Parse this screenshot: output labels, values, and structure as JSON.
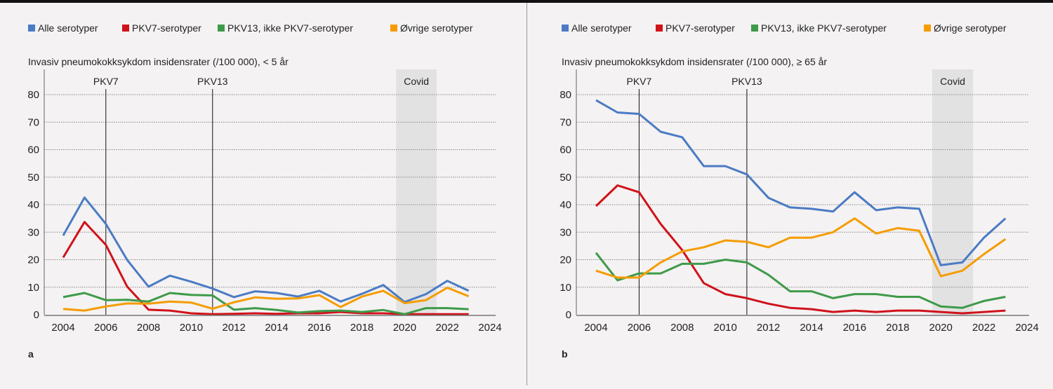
{
  "legend": [
    {
      "name": "Alle serotyper",
      "color": "#4a7bc4"
    },
    {
      "name": "PKV7-serotyper",
      "color": "#d0121b"
    },
    {
      "name": "PKV13, ikke PKV7-serotyper",
      "color": "#3e9a4a"
    },
    {
      "name": "Øvrige serotyper",
      "color": "#f59c00"
    }
  ],
  "chart_data": [
    {
      "type": "line",
      "panel_label": "a",
      "title": "Invasiv pneumokokksykdom insidensrater (/100 000), < 5 år",
      "xlim": [
        2004,
        2024
      ],
      "ylim": [
        0,
        80
      ],
      "xticks": [
        2004,
        2006,
        2008,
        2010,
        2012,
        2014,
        2016,
        2018,
        2020,
        2022,
        2024
      ],
      "yticks": [
        0,
        10,
        20,
        30,
        40,
        50,
        60,
        70,
        80
      ],
      "grid": "horizontal dotted",
      "legend_placement": "top",
      "annotations": [
        {
          "label": "PKV7",
          "x": 2006
        },
        {
          "label": "PKV13",
          "x": 2011
        }
      ],
      "shaded": {
        "label": "Covid",
        "from": 2019.6,
        "to": 2021.5
      },
      "x": [
        2004,
        2005,
        2006,
        2007,
        2008,
        2009,
        2010,
        2011,
        2012,
        2013,
        2014,
        2015,
        2016,
        2017,
        2018,
        2019,
        2020,
        2021,
        2022,
        2023
      ],
      "series": [
        {
          "name": "Alle serotyper",
          "values": [
            28.8,
            42.6,
            33,
            19.9,
            10.2,
            14.2,
            12,
            9.5,
            6.4,
            8.5,
            7.9,
            6.6,
            8.7,
            4.8,
            7.6,
            10.8,
            4.6,
            7.5,
            12.3,
            8.7
          ]
        },
        {
          "name": "PKV7-serotyper",
          "values": [
            20.8,
            33.7,
            25.4,
            10.2,
            1.8,
            1.5,
            0.5,
            0.2,
            0.3,
            0.5,
            0.3,
            0.5,
            0.5,
            1,
            0.5,
            0.5,
            0.2,
            0.2,
            0.2,
            0.2
          ]
        },
        {
          "name": "PKV13, ikke PKV7-serotyper",
          "values": [
            6.4,
            7.9,
            5.3,
            5.4,
            4.8,
            7.9,
            7.2,
            7,
            1.8,
            2.4,
            1.7,
            0.8,
            1.3,
            1.5,
            1,
            1.7,
            0.2,
            2.4,
            2.4,
            2
          ]
        },
        {
          "name": "Øvrige serotyper",
          "values": [
            2.1,
            1.5,
            3,
            4.1,
            4,
            4.8,
            4.4,
            2.2,
            4.5,
            6.3,
            5.8,
            5.9,
            7.1,
            2.8,
            6.6,
            8.7,
            4.2,
            5.3,
            9.8,
            6.7
          ]
        }
      ]
    },
    {
      "type": "line",
      "panel_label": "b",
      "title": "Invasiv pneumokokksykdom insidensrater (/100 000), ≥ 65 år",
      "xlim": [
        2004,
        2024
      ],
      "ylim": [
        0,
        80
      ],
      "xticks": [
        2004,
        2006,
        2008,
        2010,
        2012,
        2014,
        2016,
        2018,
        2020,
        2022,
        2024
      ],
      "yticks": [
        0,
        10,
        20,
        30,
        40,
        50,
        60,
        70,
        80
      ],
      "grid": "horizontal dotted",
      "legend_placement": "top",
      "annotations": [
        {
          "label": "PKV7",
          "x": 2006
        },
        {
          "label": "PKV13",
          "x": 2011
        }
      ],
      "shaded": {
        "label": "Covid",
        "from": 2019.6,
        "to": 2021.5
      },
      "x": [
        2004,
        2005,
        2006,
        2007,
        2008,
        2009,
        2010,
        2011,
        2012,
        2013,
        2014,
        2015,
        2016,
        2017,
        2018,
        2019,
        2020,
        2021,
        2022,
        2023
      ],
      "series": [
        {
          "name": "Alle serotyper",
          "values": [
            78,
            73.5,
            73,
            66.5,
            64.5,
            54,
            54,
            51,
            42.5,
            39,
            38.5,
            37.5,
            44.5,
            38,
            39,
            38.5,
            18,
            19,
            28,
            35
          ]
        },
        {
          "name": "PKV7-serotyper",
          "values": [
            39.5,
            47,
            44.5,
            33,
            23.5,
            11.5,
            7.5,
            6,
            4,
            2.5,
            2,
            1,
            1.5,
            1,
            1.5,
            1.5,
            1,
            0.5,
            1,
            1.5
          ]
        },
        {
          "name": "PKV13, ikke PKV7-serotyper",
          "values": [
            22.5,
            12.5,
            15,
            15,
            18.5,
            18.5,
            20,
            19,
            14.5,
            8.5,
            8.5,
            6,
            7.5,
            7.5,
            6.5,
            6.5,
            3,
            2.5,
            5,
            6.5
          ]
        },
        {
          "name": "Øvrige serotyper",
          "values": [
            16,
            13.5,
            13.5,
            19,
            23,
            24.5,
            27,
            26.5,
            24.5,
            28,
            28,
            30,
            35,
            29.5,
            31.5,
            30.5,
            14,
            16,
            22,
            27.5
          ]
        }
      ]
    }
  ]
}
